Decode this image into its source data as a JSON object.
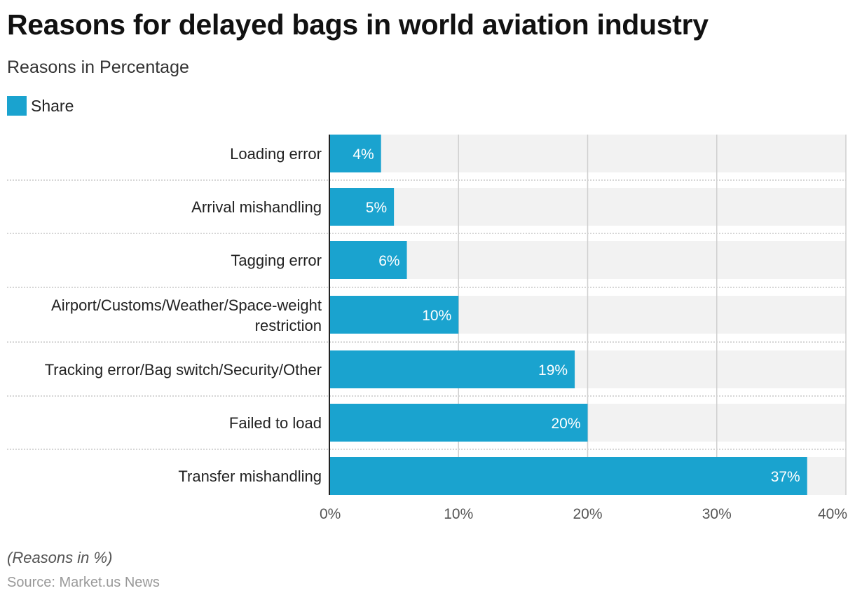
{
  "title": "Reasons for delayed bags in world aviation industry",
  "subtitle": "Reasons in Percentage",
  "note": "(Reasons in %)",
  "source": "Source: Market.us News",
  "colors": {
    "bar": "#1aa3cf",
    "band": "#f2f2f2",
    "grid": "#d0d0d0"
  },
  "chart_data": {
    "type": "bar",
    "orientation": "horizontal",
    "title": "Reasons for delayed bags in world aviation industry",
    "subtitle": "Reasons in Percentage",
    "legend": {
      "entries": [
        "Share"
      ],
      "placement": "top-left"
    },
    "categories": [
      "Loading error",
      "Arrival mishandling",
      "Tagging error",
      "Airport/Customs/Weather/Space-weight restriction",
      "Tracking error/Bag switch/Security/Other",
      "Failed to load",
      "Transfer mishandling"
    ],
    "series": [
      {
        "name": "Share",
        "values": [
          4,
          5,
          6,
          10,
          19,
          20,
          37
        ]
      }
    ],
    "data_labels": [
      "4%",
      "5%",
      "6%",
      "10%",
      "19%",
      "20%",
      "37%"
    ],
    "xlim": [
      0,
      40
    ],
    "xticks": [
      0,
      10,
      20,
      30,
      40
    ],
    "xtick_labels": [
      "0%",
      "10%",
      "20%",
      "30%",
      "40%"
    ],
    "grid": true
  }
}
